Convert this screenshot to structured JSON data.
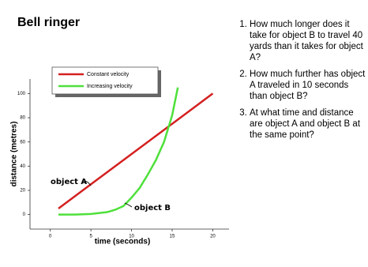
{
  "header": {
    "title": "Bell ringer"
  },
  "questions": [
    "How much longer does it take for object B to travel 40 yards than it takes for object A?",
    "How much further has object A traveled in 10 seconds than object B?",
    "At what time and distance are object A and object B at the same point?"
  ],
  "chart_data": {
    "type": "line",
    "x_label": "time (seconds)",
    "y_label": "distance (metres)",
    "xlim": [
      -2.5,
      22
    ],
    "ylim": [
      -12,
      112
    ],
    "xticks": [
      0,
      5,
      10,
      15,
      20
    ],
    "yticks": [
      0,
      20,
      40,
      60,
      80,
      100
    ],
    "legend": "upper left",
    "series": [
      {
        "name": "Constant velocity",
        "color": "#d42020",
        "x": [
          1,
          5,
          10,
          15,
          20
        ],
        "values": [
          5,
          25,
          50,
          75,
          100
        ]
      },
      {
        "name": "Increasing velocity",
        "color": "#4ee03a",
        "x": [
          1,
          3,
          5,
          7,
          8,
          9,
          10,
          11,
          12,
          13,
          14,
          15,
          15.7
        ],
        "values": [
          0,
          0,
          0.5,
          2,
          4,
          7,
          14,
          22,
          33,
          45,
          60,
          82,
          105
        ]
      }
    ],
    "annotations": [
      {
        "text": "object A"
      },
      {
        "text": "object B"
      }
    ]
  }
}
